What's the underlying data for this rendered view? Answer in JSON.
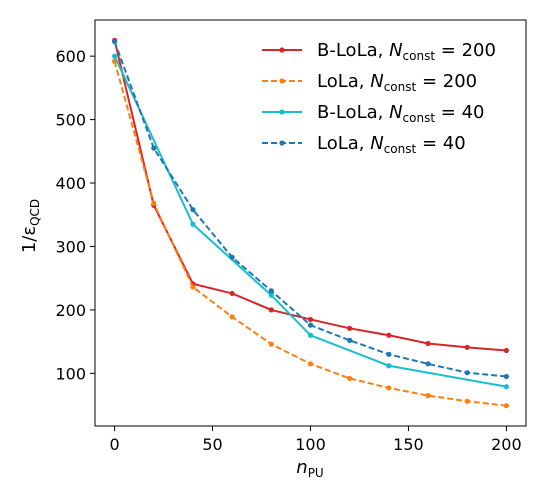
{
  "chart_data": {
    "type": "line",
    "xlabel": "n",
    "xlabel_sub": "PU",
    "ylabel": "1/ε",
    "ylabel_sub": "QCD",
    "xlim": [
      -10,
      210
    ],
    "ylim": [
      17,
      657
    ],
    "xticks": [
      0,
      50,
      100,
      150,
      200
    ],
    "yticks": [
      100,
      200,
      300,
      400,
      500,
      600
    ],
    "grid": false,
    "legend_position": "top-right",
    "series": [
      {
        "name": "B-LoLa, N_const = 200",
        "legend_prefix": "B-LoLa, ",
        "legend_var": "N",
        "legend_sub": "const",
        "legend_eq": " = 200",
        "color": "#d62728",
        "dashed": false,
        "x": [
          0,
          20,
          40,
          60,
          80,
          100,
          120,
          140,
          160,
          180,
          200
        ],
        "y": [
          625,
          365,
          241,
          226,
          200,
          185,
          171,
          160,
          147,
          141,
          136
        ]
      },
      {
        "name": "LoLa, N_const = 200",
        "legend_prefix": "LoLa, ",
        "legend_var": "N",
        "legend_sub": "const",
        "legend_eq": " = 200",
        "color": "#ff7f0e",
        "dashed": true,
        "x": [
          0,
          20,
          40,
          60,
          80,
          100,
          120,
          140,
          160,
          180,
          200
        ],
        "y": [
          592,
          368,
          236,
          189,
          146,
          115,
          92,
          77,
          65,
          56,
          49
        ]
      },
      {
        "name": "B-LoLa, N_const = 40",
        "legend_prefix": "B-LoLa, ",
        "legend_var": "N",
        "legend_sub": "const",
        "legend_eq": " = 40",
        "color": "#17becf",
        "dashed": false,
        "x": [
          0,
          40,
          80,
          100,
          140,
          200
        ],
        "y": [
          600,
          335,
          223,
          160,
          112,
          79
        ]
      },
      {
        "name": "LoLa, N_const = 40",
        "legend_prefix": "LoLa, ",
        "legend_var": "N",
        "legend_sub": "const",
        "legend_eq": " = 40",
        "color": "#1f77b4",
        "dashed": true,
        "x": [
          0,
          20,
          40,
          60,
          80,
          100,
          120,
          140,
          160,
          180,
          200
        ],
        "y": [
          623,
          455,
          358,
          283,
          230,
          176,
          152,
          130,
          115,
          101,
          95
        ]
      }
    ]
  }
}
